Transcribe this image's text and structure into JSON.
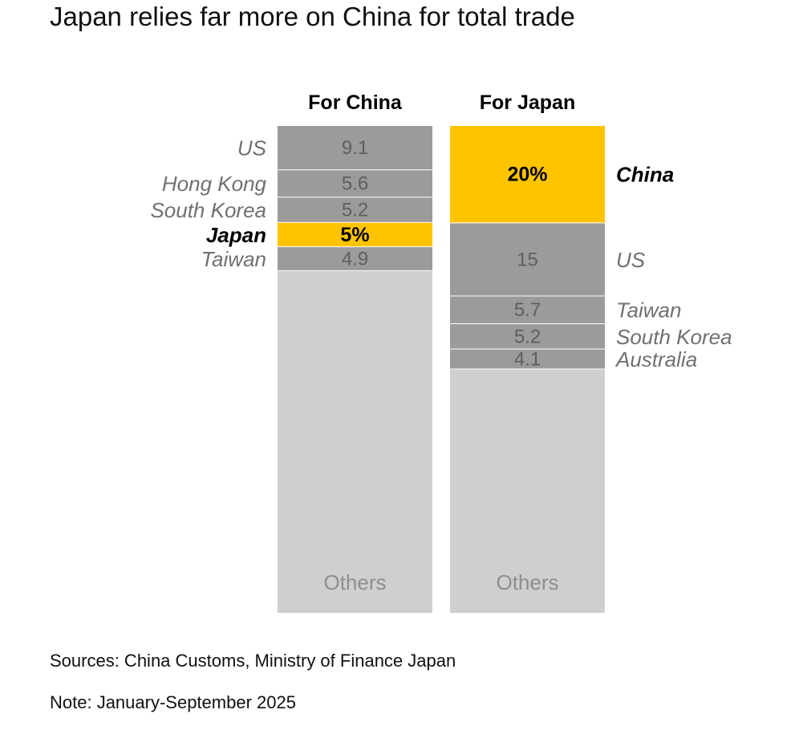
{
  "title": "Japan relies far more on China for total trade",
  "footer": {
    "source": "Sources: China Customs, Ministry of Finance Japan",
    "note": "Note: January-September 2025"
  },
  "colors": {
    "highlight": "#ffc400",
    "segment": "#9b9b9b",
    "others": "#cfcfcf"
  },
  "chart_data": {
    "type": "stacked-bar",
    "unit": "% of total trade",
    "ylim": [
      0,
      100
    ],
    "others_label": "Others",
    "bars": [
      {
        "name": "For China",
        "segments": [
          {
            "partner": "US",
            "value": 9.1,
            "label": "9.1",
            "highlight": false
          },
          {
            "partner": "Hong Kong",
            "value": 5.6,
            "label": "5.6",
            "highlight": false
          },
          {
            "partner": "South Korea",
            "value": 5.2,
            "label": "5.2",
            "highlight": false
          },
          {
            "partner": "Japan",
            "value": 5,
            "label": "5%",
            "highlight": true
          },
          {
            "partner": "Taiwan",
            "value": 4.9,
            "label": "4.9",
            "highlight": false
          }
        ],
        "label_side": "left"
      },
      {
        "name": "For Japan",
        "segments": [
          {
            "partner": "China",
            "value": 20,
            "label": "20%",
            "highlight": true
          },
          {
            "partner": "US",
            "value": 15,
            "label": "15",
            "highlight": false
          },
          {
            "partner": "Taiwan",
            "value": 5.7,
            "label": "5.7",
            "highlight": false
          },
          {
            "partner": "South Korea",
            "value": 5.2,
            "label": "5.2",
            "highlight": false
          },
          {
            "partner": "Australia",
            "value": 4.1,
            "label": "4.1",
            "highlight": false
          }
        ],
        "label_side": "right"
      }
    ]
  }
}
